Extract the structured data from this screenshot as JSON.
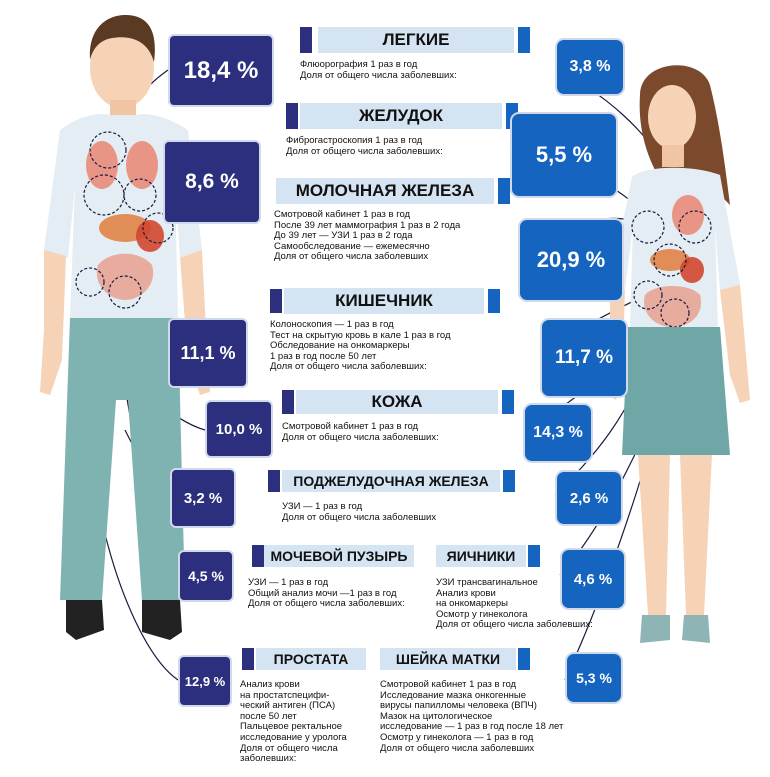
{
  "colors": {
    "male_box": "#2b2f7d",
    "female_box": "#1565c0",
    "header_band": "#d4e4f2",
    "shirt": "#e3edf3",
    "jeans": "#7fb3b1",
    "skirt": "#6fa6a6",
    "skin": "#f6d2b6"
  },
  "figures": {
    "man_icon": "man-figure-icon",
    "woman_icon": "woman-figure-icon"
  },
  "sections": {
    "lungs": {
      "title": "ЛЕГКИЕ",
      "text": "Флюорография 1 раз в год\nДоля от общего числа заболевших:",
      "male_pct": "18,4 %",
      "female_pct": "3,8 %"
    },
    "stomach": {
      "title": "ЖЕЛУДОК",
      "text": "Фиброгастроскопия 1 раз в год\nДоля от общего числа заболевших:",
      "male_pct": "8,6 %",
      "female_pct": "5,5 %"
    },
    "breast": {
      "title": "МОЛОЧНАЯ ЖЕЛЕЗА",
      "text": "Смотровой кабинет 1 раз в год\nПосле 39 лет маммография 1 раз в 2 года\nДо 39 лет — УЗИ 1 раз в 2 года\nСамообследование  — ежемесячно\nДоля от общего числа заболевших",
      "female_pct": "20,9 %"
    },
    "intestine": {
      "title": "КИШЕЧНИК",
      "text": "Колоноскопия — 1 раз в год\nТест на скрытую кровь в кале 1 раз в год\nОбследование на онкомаркеры\n1 раз в год после 50 лет\nДоля от общего числа заболевших:",
      "male_pct": "11,1 %",
      "female_pct": "11,7 %"
    },
    "skin": {
      "title": "КОЖА",
      "text": "Смотровой кабинет 1 раз в год\nДоля от общего числа заболевших:",
      "male_pct": "10,0 %",
      "female_pct": "14,3 %"
    },
    "pancreas": {
      "title": "ПОДЖЕЛУДОЧНАЯ ЖЕЛЕЗА",
      "text": "УЗИ — 1 раз в год\nДоля от общего числа заболевших",
      "male_pct": "3,2 %",
      "female_pct": "2,6 %"
    },
    "bladder": {
      "title": "МОЧЕВОЙ ПУЗЫРЬ",
      "text": "УЗИ — 1 раз в год\nОбщий анализ мочи —1 раз в год\nДоля от общего числа заболевших:",
      "male_pct": "4,5 %"
    },
    "ovaries": {
      "title": "ЯИЧНИКИ",
      "text": "УЗИ трансвагинальное\nАнализ крови\nна онкомаркеры\nОсмотр у гинеколога\nДоля от общего числа заболевших:",
      "female_pct": "4,6 %"
    },
    "prostate": {
      "title": "ПРОСТАТА",
      "text": "Анализ крови\nна простатспецифи-\nческий антиген (ПСА)\nпосле 50 лет\nПальцевое ректальное\nисследование у уролога\nДоля от общего числа\nзаболевших:",
      "male_pct": "12,9 %"
    },
    "cervix": {
      "title": "ШЕЙКА МАТКИ",
      "text": "Смотровой кабинет 1 раз в год\nИсследование мазка онкогенные\nвирусы папилломы человека (ВПЧ)\nМазок на цитологическое\nисследование — 1 раз в год после 18 лет\nОсмотр у гинеколога — 1 раз в год\nДоля от общего числа заболевших",
      "female_pct": "5,3 %"
    }
  }
}
